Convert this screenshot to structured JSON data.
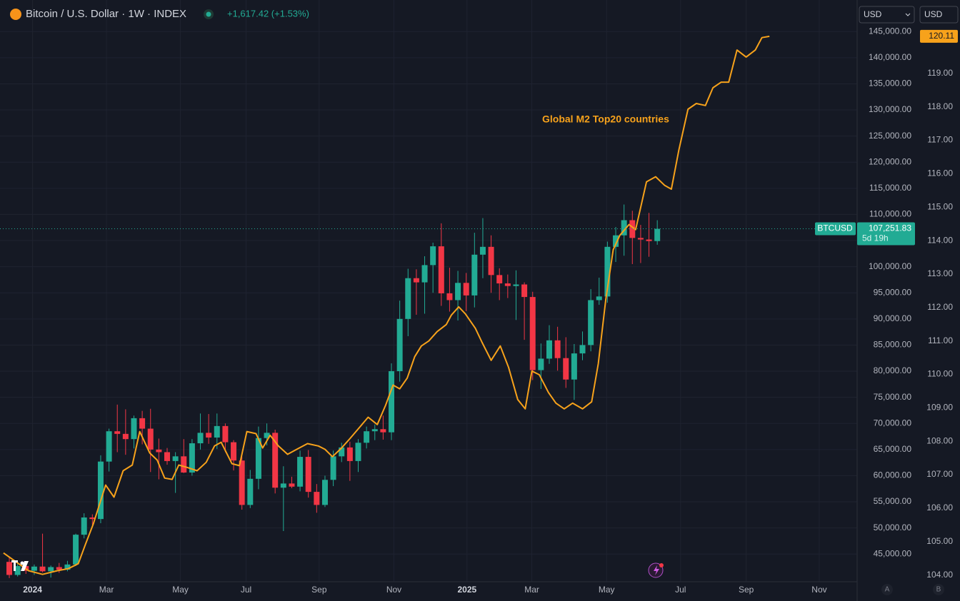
{
  "chart_data": {
    "type": "candlestick",
    "title": "Bitcoin / U.S. Dollar · 1W · INDEX",
    "change": "+1,617.42 (+1.53%)",
    "currency": "USD",
    "currency2": "USD",
    "symbol": "BTCUSD",
    "price_label": "107,251.83",
    "countdown": "5d 19h",
    "buttons": [
      "A",
      "B"
    ],
    "up_color": "#22ab94",
    "down_color": "#f23645",
    "grid": true,
    "x": [
      0,
      1,
      2,
      3,
      4,
      5,
      6,
      7,
      8,
      9,
      10,
      11,
      12,
      13,
      14,
      15,
      16,
      17,
      18,
      19,
      20,
      21,
      22,
      23,
      24,
      25,
      26,
      27,
      28,
      29,
      30,
      31,
      32,
      33,
      34,
      35,
      36,
      37,
      38,
      39,
      40,
      41,
      42,
      43,
      44,
      45,
      46,
      47,
      48,
      49,
      50,
      51,
      52,
      53,
      54,
      55,
      56,
      57,
      58,
      59,
      60,
      61,
      62,
      63,
      64,
      65,
      66,
      67,
      68,
      69,
      70,
      71,
      72,
      73,
      74,
      75,
      76,
      77,
      78
    ],
    "open": [
      43500,
      41000,
      42700,
      41800,
      42600,
      41700,
      42500,
      42000,
      43000,
      48700,
      52000,
      51700,
      62700,
      68500,
      68000,
      67000,
      71000,
      69000,
      65000,
      64500,
      62800,
      63700,
      60600,
      66200,
      68200,
      67300,
      69500,
      66400,
      62900,
      54400,
      59400,
      67200,
      68200,
      57700,
      58500,
      57900,
      63600,
      56900,
      54400,
      59200,
      63700,
      65400,
      62800,
      66300,
      68500,
      68900,
      68300,
      80000,
      90000,
      97800,
      97000,
      100300,
      103900,
      94900,
      93600,
      96900,
      94500,
      102300,
      103800,
      98400,
      96800,
      96300,
      96600,
      94200,
      80200,
      82400,
      85900,
      82500,
      78400,
      83400,
      85000,
      93600,
      94300,
      103800,
      106000,
      108900,
      105500,
      105200,
      104900
    ],
    "high": [
      44500,
      43300,
      43200,
      43000,
      48900,
      42800,
      43300,
      43700,
      48900,
      52800,
      52600,
      63900,
      69000,
      73600,
      72700,
      71500,
      72400,
      72800,
      67100,
      65300,
      64500,
      67000,
      67000,
      71900,
      71800,
      71900,
      70000,
      66800,
      63700,
      61100,
      69400,
      70000,
      68800,
      61800,
      59800,
      64800,
      64900,
      58400,
      60000,
      64800,
      66300,
      66500,
      67000,
      69400,
      69800,
      71500,
      81500,
      93500,
      99600,
      99500,
      102000,
      104600,
      108300,
      99800,
      99200,
      98800,
      106500,
      109300,
      106000,
      99700,
      98500,
      99300,
      97000,
      95200,
      85300,
      88800,
      88500,
      86500,
      85200,
      87600,
      95700,
      97900,
      104800,
      107600,
      111900,
      110700,
      108000,
      110300,
      108900
    ],
    "low": [
      40400,
      40700,
      41200,
      41000,
      41500,
      40500,
      41400,
      41700,
      42700,
      48000,
      50600,
      50900,
      60800,
      64500,
      64000,
      65200,
      66000,
      60700,
      59300,
      62100,
      56700,
      60500,
      60000,
      65000,
      66100,
      65100,
      64500,
      61000,
      53500,
      53800,
      57400,
      65800,
      56600,
      49400,
      57600,
      57000,
      55800,
      52900,
      54000,
      58000,
      62600,
      59000,
      60700,
      65200,
      66800,
      66900,
      66800,
      78000,
      86700,
      90800,
      91000,
      95000,
      92500,
      91400,
      89700,
      91500,
      92200,
      97800,
      95000,
      93600,
      94000,
      89800,
      86000,
      78300,
      76600,
      81400,
      80100,
      76800,
      74500,
      82100,
      83800,
      92700,
      93100,
      100900,
      102100,
      100500,
      100700,
      101900,
      104200
    ],
    "close": [
      41000,
      42700,
      41800,
      42600,
      41700,
      42500,
      42000,
      43000,
      48700,
      52000,
      51700,
      62700,
      68500,
      68000,
      67000,
      71000,
      69000,
      65000,
      64500,
      62800,
      63700,
      60600,
      66200,
      68200,
      67300,
      69500,
      66400,
      62900,
      54400,
      59400,
      67200,
      68200,
      57700,
      58500,
      57900,
      63600,
      56900,
      54400,
      59200,
      63700,
      65400,
      62800,
      66300,
      68500,
      68900,
      68300,
      80000,
      90000,
      97800,
      97000,
      100300,
      103900,
      94900,
      93600,
      96900,
      94500,
      102300,
      103800,
      98400,
      96800,
      96300,
      96600,
      94200,
      80200,
      82400,
      85900,
      82500,
      78400,
      83400,
      85000,
      93600,
      94300,
      103800,
      106000,
      108900,
      105500,
      105200,
      104900,
      107251.83
    ],
    "series": [
      {
        "name": "Global M2 Top20 countries",
        "color": "#f7a21b",
        "axis": "y2",
        "last_label": "120.11",
        "x": [
          -0.7,
          2.3,
          4.0,
          5.8,
          7.1,
          8.3,
          9.2,
          10.1,
          11.6,
          12.6,
          13.7,
          14.8,
          15.7,
          16.9,
          17.8,
          18.7,
          19.6,
          20.4,
          21.4,
          22.6,
          23.7,
          24.7,
          25.5,
          26.8,
          27.7,
          28.6,
          29.7,
          30.5,
          31.4,
          32.4,
          33.5,
          34.6,
          35.9,
          37.2,
          38.0,
          38.9,
          40.0,
          41.0,
          42.1,
          43.2,
          44.3,
          45.3,
          46.2,
          47.0,
          47.9,
          48.8,
          49.6,
          50.5,
          51.5,
          52.6,
          53.2,
          54.1,
          54.9,
          56.1,
          56.9,
          58.0,
          59.1,
          60.1,
          61.2,
          62.1,
          62.9,
          63.8,
          64.9,
          65.8,
          66.8,
          67.8,
          69.0,
          70.1,
          70.9,
          71.8,
          72.7,
          73.5,
          74.6,
          75.4,
          76.7,
          77.8,
          78.9,
          79.7,
          80.6,
          81.7,
          82.7,
          83.8,
          84.7,
          85.7,
          86.6,
          87.6,
          88.7,
          89.8,
          90.6,
          91.5
        ],
        "values": [
          104.66,
          104.13,
          104.02,
          104.13,
          104.19,
          104.34,
          104.94,
          105.52,
          106.69,
          106.33,
          107.12,
          107.29,
          108.29,
          107.65,
          107.44,
          106.9,
          106.86,
          107.29,
          107.22,
          107.12,
          107.37,
          107.86,
          107.97,
          107.33,
          107.27,
          108.29,
          108.23,
          107.8,
          108.18,
          107.86,
          107.61,
          107.76,
          107.93,
          107.86,
          107.76,
          107.54,
          107.8,
          108.08,
          108.4,
          108.72,
          108.5,
          109.08,
          109.68,
          109.57,
          109.89,
          110.53,
          110.85,
          111.0,
          111.28,
          111.49,
          111.77,
          112.02,
          111.81,
          111.38,
          110.96,
          110.42,
          110.85,
          110.21,
          109.25,
          108.97,
          110.1,
          109.99,
          109.46,
          109.14,
          108.97,
          109.14,
          108.97,
          109.18,
          110.32,
          112.24,
          113.73,
          114.16,
          114.48,
          114.33,
          115.76,
          115.91,
          115.65,
          115.54,
          116.71,
          117.93,
          118.1,
          118.04,
          118.57,
          118.74,
          118.74,
          119.7,
          119.49,
          119.7,
          120.07,
          120.11
        ]
      }
    ],
    "xlim": [
      -1.12,
      102.06
    ],
    "xticks": [
      {
        "value": 2.8,
        "label": "2024"
      },
      {
        "value": 11.7,
        "label": "Mar"
      },
      {
        "value": 20.6,
        "label": "May"
      },
      {
        "value": 28.5,
        "label": "Jul"
      },
      {
        "value": 37.3,
        "label": "Sep"
      },
      {
        "value": 46.3,
        "label": "Nov"
      },
      {
        "value": 55.1,
        "label": "2025"
      },
      {
        "value": 62.9,
        "label": "Mar"
      },
      {
        "value": 71.9,
        "label": "May"
      },
      {
        "value": 80.8,
        "label": "Jul"
      },
      {
        "value": 88.7,
        "label": "Sep"
      },
      {
        "value": 97.5,
        "label": "Nov"
      }
    ],
    "ylim": [
      39700,
      146400
    ],
    "yticks": [
      {
        "value": 45000,
        "label": "45,000.00"
      },
      {
        "value": 50000,
        "label": "50,000.00"
      },
      {
        "value": 55000,
        "label": "55,000.00"
      },
      {
        "value": 60000,
        "label": "60,000.00"
      },
      {
        "value": 65000,
        "label": "65,000.00"
      },
      {
        "value": 70000,
        "label": "70,000.00"
      },
      {
        "value": 75000,
        "label": "75,000.00"
      },
      {
        "value": 80000,
        "label": "80,000.00"
      },
      {
        "value": 85000,
        "label": "85,000.00"
      },
      {
        "value": 90000,
        "label": "90,000.00"
      },
      {
        "value": 95000,
        "label": "95,000.00"
      },
      {
        "value": 100000,
        "label": "100,000.00"
      },
      {
        "value": 105000,
        "label": "105,000.00"
      },
      {
        "value": 110000,
        "label": "110,000.00"
      },
      {
        "value": 115000,
        "label": "115,000.00"
      },
      {
        "value": 120000,
        "label": "120,000.00"
      },
      {
        "value": 125000,
        "label": "125,000.00"
      },
      {
        "value": 130000,
        "label": "130,000.00"
      },
      {
        "value": 135000,
        "label": "135,000.00"
      },
      {
        "value": 140000,
        "label": "140,000.00"
      },
      {
        "value": 145000,
        "label": "145,000.00"
      }
    ],
    "y2lim": [
      103.8,
      120.47
    ],
    "y2ticks": [
      {
        "value": 104,
        "label": "104.00"
      },
      {
        "value": 105,
        "label": "105.00"
      },
      {
        "value": 106,
        "label": "106.00"
      },
      {
        "value": 107,
        "label": "107.00"
      },
      {
        "value": 108,
        "label": "108.00"
      },
      {
        "value": 109,
        "label": "109.00"
      },
      {
        "value": 110,
        "label": "110.00"
      },
      {
        "value": 111,
        "label": "111.00"
      },
      {
        "value": 112,
        "label": "112.00"
      },
      {
        "value": 113,
        "label": "113.00"
      },
      {
        "value": 114,
        "label": "114.00"
      },
      {
        "value": 115,
        "label": "115.00"
      },
      {
        "value": 116,
        "label": "116.00"
      },
      {
        "value": 117,
        "label": "117.00"
      },
      {
        "value": 118,
        "label": "118.00"
      },
      {
        "value": 119,
        "label": "119.00"
      }
    ]
  }
}
